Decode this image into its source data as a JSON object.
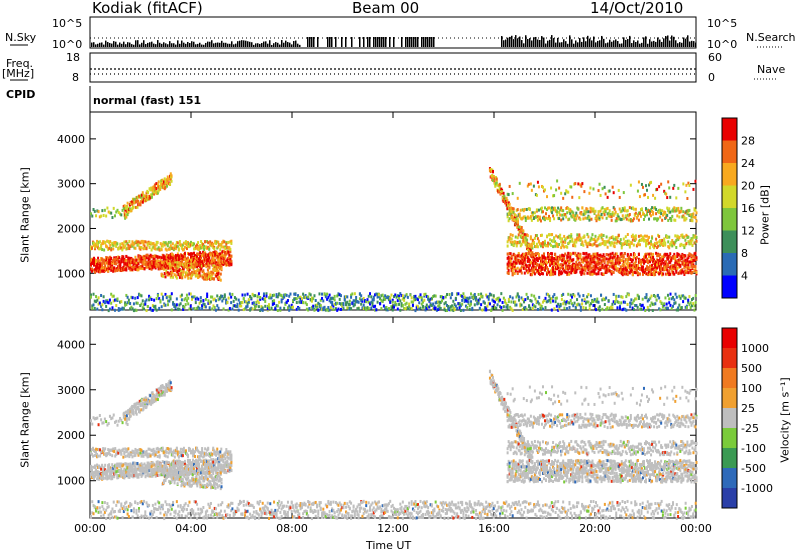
{
  "header": {
    "station": "Kodiak (fitACF)",
    "beam": "Beam 00",
    "date": "14/Oct/2010"
  },
  "strip_labels": {
    "nsky": "N.Sky",
    "nsearch": "N.Search",
    "freq_line1": "Freq.",
    "freq_line2": "[MHz]",
    "nave": "Nave",
    "cpid": "CPID",
    "cpid_value": "normal (fast) 151",
    "sky_ticks": [
      "10^5",
      "10^0"
    ],
    "search_ticks": [
      "10^5",
      "10^0"
    ],
    "freq_ticks": [
      "18",
      "8"
    ],
    "nave_ticks": [
      "60",
      "0"
    ]
  },
  "chart_data": [
    {
      "type": "heatmap",
      "name": "power",
      "ylabel": "Slant Range [km]",
      "ylim": [
        180,
        4600
      ],
      "yticks": [
        1000,
        2000,
        3000,
        4000
      ],
      "xlim": [
        0,
        24
      ],
      "colorbar_label": "Power [dB]",
      "colorbar_ticks": [
        "28",
        "24",
        "20",
        "16",
        "12",
        "8",
        "4"
      ],
      "colorbar_colors": [
        "#0000ff",
        "#2a6bb5",
        "#3d8f5a",
        "#7ec63c",
        "#d2d82a",
        "#f8a91f",
        "#f06716",
        "#e80000"
      ]
    },
    {
      "type": "heatmap",
      "name": "velocity",
      "ylabel": "Slant Range [km]",
      "ylim": [
        180,
        4600
      ],
      "yticks": [
        1000,
        2000,
        3000,
        4000
      ],
      "xlim": [
        0,
        24
      ],
      "xlabel": "Time UT",
      "xticks": [
        "00:00",
        "04:00",
        "08:00",
        "12:00",
        "16:00",
        "20:00",
        "00:00"
      ],
      "colorbar_label": "Velocity [m s⁻¹]",
      "colorbar_ticks": [
        "1000",
        "500",
        "100",
        "25",
        "-25",
        "-100",
        "-500",
        "-1000"
      ],
      "colorbar_colors": [
        "#2a3fa8",
        "#2e6aba",
        "#3a9a53",
        "#7acb3a",
        "#bebebe",
        "#f0a030",
        "#f07a20",
        "#e83010",
        "#e80000"
      ]
    }
  ]
}
